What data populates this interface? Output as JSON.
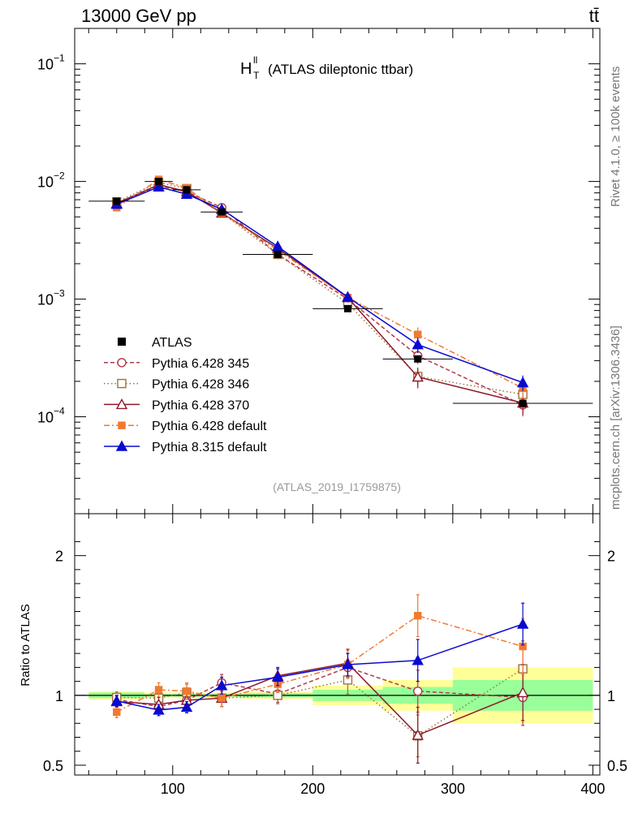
{
  "header": {
    "left": "13000 GeV pp",
    "right": "tt̄"
  },
  "side_labels": {
    "rivet": "Rivet 4.1.0, ≥ 100k events",
    "mcplots": "mcplots.cern.ch [arXiv:1306.3436]"
  },
  "chart_data": {
    "type": "line",
    "title_main": "H",
    "title_sup": "ll",
    "title_sub": "T",
    "title_rest": "(ATLAS dileptonic ttbar)",
    "analysis_tag": "(ATLAS_2019_I1759875)",
    "xlim": [
      30,
      405
    ],
    "xticks": [
      100,
      200,
      300,
      400
    ],
    "main": {
      "yscale": "log",
      "ylim": [
        1.5e-05,
        0.2
      ],
      "yticks": [
        {
          "value": 0.1,
          "base": "10",
          "exp": "−1"
        },
        {
          "value": 0.01,
          "base": "10",
          "exp": "−2"
        },
        {
          "value": 0.001,
          "base": "10",
          "exp": "−3"
        },
        {
          "value": 0.0001,
          "base": "10",
          "exp": "−4"
        }
      ]
    },
    "ratio": {
      "ylabel": "Ratio to ATLAS",
      "ylim": [
        0.43,
        2.3
      ],
      "yticks": [
        {
          "value": 0.5,
          "label": "0.5"
        },
        {
          "value": 1,
          "label": "1"
        },
        {
          "value": 2,
          "label": "2"
        }
      ],
      "bands": [
        {
          "x0": 40,
          "x1": 80,
          "inner": 0.02,
          "outer": 0.03
        },
        {
          "x0": 80,
          "x1": 100,
          "inner": 0.01,
          "outer": 0.02
        },
        {
          "x0": 100,
          "x1": 120,
          "inner": 0.01,
          "outer": 0.02
        },
        {
          "x0": 120,
          "x1": 150,
          "inner": 0.01,
          "outer": 0.02
        },
        {
          "x0": 150,
          "x1": 200,
          "inner": 0.015,
          "outer": 0.025
        },
        {
          "x0": 200,
          "x1": 250,
          "inner": 0.04,
          "outer": 0.07
        },
        {
          "x0": 250,
          "x1": 300,
          "inner": 0.06,
          "outer": 0.11
        },
        {
          "x0": 300,
          "x1": 400,
          "inner": 0.11,
          "outer": 0.2
        }
      ]
    },
    "x": [
      60,
      90,
      110,
      135,
      175,
      225,
      275,
      350
    ],
    "data": {
      "name": "ATLAS",
      "values": [
        0.0068,
        0.01,
        0.0085,
        0.0055,
        0.0024,
        0.00083,
        0.00031,
        0.00013
      ],
      "xerr_lo": [
        20,
        10,
        10,
        15,
        25,
        25,
        25,
        50
      ],
      "xerr_hi": [
        20,
        10,
        10,
        15,
        25,
        25,
        25,
        50
      ]
    },
    "series": [
      {
        "name": "Pythia 6.428 345",
        "color": "#b03a48",
        "dash": "5,3",
        "marker": "circle-open",
        "values": [
          0.0066,
          0.0092,
          0.0082,
          0.006,
          0.0024,
          0.001,
          0.00033,
          0.000126
        ],
        "ratio": [
          0.97,
          0.92,
          0.965,
          1.09,
          1.01,
          1.2,
          1.03,
          0.985
        ],
        "rerr": [
          0.04,
          0.05,
          0.06,
          0.06,
          0.06,
          0.1,
          0.15,
          0.2
        ]
      },
      {
        "name": "Pythia 6.428 346",
        "color": "#a0703a",
        "dash": "1.5,3",
        "marker": "square-open",
        "values": [
          0.0067,
          0.0098,
          0.0087,
          0.0054,
          0.0024,
          0.00092,
          0.00022,
          0.000155
        ],
        "ratio": [
          0.985,
          0.98,
          1.02,
          0.98,
          1.0,
          1.11,
          0.71,
          1.19
        ],
        "rerr": [
          0.04,
          0.05,
          0.06,
          0.06,
          0.06,
          0.1,
          0.15,
          0.2
        ]
      },
      {
        "name": "Pythia 6.428 370",
        "color": "#8b1a2a",
        "dash": "",
        "marker": "triangle-open",
        "values": [
          0.0065,
          0.0094,
          0.0082,
          0.0054,
          0.0027,
          0.00103,
          0.000218,
          0.000131
        ],
        "ratio": [
          0.955,
          0.935,
          0.965,
          0.98,
          1.14,
          1.23,
          0.715,
          1.02
        ],
        "rerr": [
          0.04,
          0.05,
          0.06,
          0.06,
          0.06,
          0.1,
          0.2,
          0.2
        ]
      },
      {
        "name": "Pythia 6.428 default",
        "color": "#f07a30",
        "dash": "7,3,2,3",
        "marker": "square-filled",
        "values": [
          0.006,
          0.0104,
          0.0088,
          0.0054,
          0.0026,
          0.00103,
          0.0005,
          0.000175
        ],
        "ratio": [
          0.88,
          1.04,
          1.03,
          0.98,
          1.08,
          1.22,
          1.57,
          1.35
        ],
        "rerr": [
          0.04,
          0.05,
          0.06,
          0.06,
          0.06,
          0.1,
          0.15,
          0.2
        ]
      },
      {
        "name": "Pythia 8.315 default",
        "color": "#0a0ad2",
        "dash": "",
        "marker": "triangle-filled",
        "values": [
          0.0064,
          0.009,
          0.0078,
          0.0058,
          0.0028,
          0.00104,
          0.00041,
          0.000195
        ],
        "ratio": [
          0.96,
          0.895,
          0.915,
          1.07,
          1.13,
          1.22,
          1.25,
          1.51
        ],
        "rerr": [
          0.04,
          0.04,
          0.04,
          0.06,
          0.06,
          0.08,
          0.15,
          0.15
        ]
      }
    ]
  }
}
